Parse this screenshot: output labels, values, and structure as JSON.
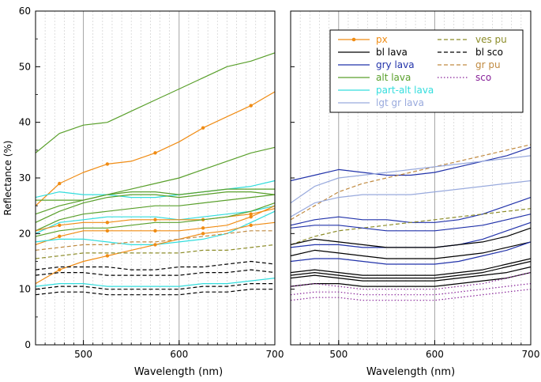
{
  "chart_data": [
    {
      "type": "line",
      "panel": "left",
      "xlabel": "Wavelength (nm)",
      "ylabel": "Reflectance (%)",
      "xlim": [
        450,
        700
      ],
      "ylim": [
        0,
        60
      ],
      "xticks": [
        500,
        600,
        700
      ],
      "yticks": [
        0,
        10,
        20,
        30,
        40,
        50,
        60
      ],
      "minor_grid_step": 10,
      "x": [
        450,
        475,
        500,
        525,
        550,
        575,
        600,
        625,
        650,
        675,
        700
      ],
      "series": [
        {
          "name": "alt lava",
          "color": "#5aa02c",
          "style": "solid",
          "values": [
            34.5,
            38,
            39.5,
            40,
            42,
            44,
            46,
            48,
            50,
            51,
            52.5
          ]
        },
        {
          "name": "px",
          "color": "#f08c14",
          "style": "solid",
          "marker": true,
          "values": [
            25,
            29,
            31,
            32.5,
            33,
            34.5,
            36.5,
            39,
            41,
            43,
            45.5
          ]
        },
        {
          "name": "alt lava",
          "color": "#5aa02c",
          "style": "solid",
          "values": [
            26,
            26,
            26,
            27,
            28,
            29,
            30,
            31.5,
            33,
            34.5,
            35.5
          ]
        },
        {
          "name": "part-alt lava",
          "color": "#33dddd",
          "style": "solid",
          "values": [
            26.5,
            27.5,
            27,
            27,
            26.5,
            26.5,
            27,
            27.5,
            28,
            28.5,
            29.5
          ]
        },
        {
          "name": "alt lava",
          "color": "#5aa02c",
          "style": "solid",
          "values": [
            23.5,
            25,
            26,
            27,
            27.5,
            27.5,
            27,
            27.5,
            28,
            28,
            28
          ]
        },
        {
          "name": "alt lava",
          "color": "#5aa02c",
          "style": "solid",
          "values": [
            22,
            24,
            25.5,
            26.5,
            27,
            27,
            26.5,
            27,
            27.5,
            27.5,
            27
          ]
        },
        {
          "name": "alt lava",
          "color": "#5aa02c",
          "style": "solid",
          "values": [
            20.5,
            22.5,
            23.5,
            24,
            24.5,
            25,
            25,
            25.5,
            26,
            26.5,
            27
          ]
        },
        {
          "name": "part-alt lava",
          "color": "#33dddd",
          "style": "solid",
          "values": [
            20,
            22,
            22.5,
            23,
            23,
            23,
            22.5,
            23,
            23.5,
            24,
            25
          ]
        },
        {
          "name": "px",
          "color": "#f08c14",
          "style": "solid",
          "marker": true,
          "values": [
            20.5,
            21.5,
            22,
            22,
            22.5,
            22.5,
            22.5,
            22.5,
            23,
            23.5,
            24.5
          ]
        },
        {
          "name": "alt lava",
          "color": "#5aa02c",
          "style": "solid",
          "values": [
            19.5,
            20.5,
            21,
            21,
            21.5,
            22,
            22,
            22.5,
            23,
            24,
            25.5
          ]
        },
        {
          "name": "px",
          "color": "#f08c14",
          "style": "solid",
          "marker": true,
          "values": [
            18,
            19.5,
            20.5,
            20.5,
            20.5,
            20.5,
            20.5,
            21,
            21.5,
            23,
            25
          ]
        },
        {
          "name": "part-alt lava",
          "color": "#33dddd",
          "style": "solid",
          "values": [
            18.5,
            19,
            19,
            18.5,
            18,
            18,
            18.5,
            19,
            20,
            22,
            24
          ]
        },
        {
          "name": "px",
          "color": "#f08c14",
          "style": "solid",
          "marker": true,
          "values": [
            11,
            13.5,
            15,
            16,
            17,
            18,
            19,
            20,
            20.5,
            21.5,
            22
          ]
        },
        {
          "name": "gr pu",
          "color": "#c08a40",
          "style": "dash",
          "values": [
            17,
            17.5,
            18,
            18,
            18.5,
            18.5,
            19,
            19.5,
            20,
            20.5,
            20.5
          ]
        },
        {
          "name": "ves pu",
          "color": "#8c8c28",
          "style": "dash",
          "values": [
            15.5,
            16,
            16.5,
            16.5,
            16.5,
            16.5,
            16.5,
            17,
            17,
            17.5,
            18
          ]
        },
        {
          "name": "bl sco",
          "color": "#000000",
          "style": "dash",
          "values": [
            13.5,
            14,
            14,
            14,
            13.5,
            13.5,
            14,
            14,
            14.5,
            15,
            14.5
          ]
        },
        {
          "name": "bl sco",
          "color": "#000000",
          "style": "dash",
          "values": [
            12.5,
            13,
            13,
            12.5,
            12.5,
            12.5,
            12.5,
            13,
            13,
            13.5,
            13
          ]
        },
        {
          "name": "part-alt lava",
          "color": "#33dddd",
          "style": "solid",
          "values": [
            10.5,
            11,
            11,
            10.5,
            10.5,
            10.5,
            10.5,
            11,
            11,
            11.5,
            12
          ]
        },
        {
          "name": "bl sco",
          "color": "#000000",
          "style": "dash",
          "values": [
            10,
            10.5,
            10.5,
            10,
            10,
            10,
            10,
            10.5,
            10.5,
            11,
            11
          ]
        },
        {
          "name": "bl sco",
          "color": "#000000",
          "style": "dash",
          "values": [
            9,
            9.5,
            9.5,
            9,
            9,
            9,
            9,
            9.5,
            9.5,
            10,
            10
          ]
        }
      ]
    },
    {
      "type": "line",
      "panel": "right",
      "xlabel": "Wavelength (nm)",
      "xlim": [
        450,
        700
      ],
      "ylim": [
        0,
        60
      ],
      "xticks": [
        500,
        600,
        700
      ],
      "minor_grid_step": 10,
      "x": [
        450,
        475,
        500,
        525,
        550,
        575,
        600,
        625,
        650,
        675,
        700
      ],
      "series": [
        {
          "name": "gry lava",
          "color": "#2233aa",
          "style": "solid",
          "values": [
            29.5,
            30.5,
            31.5,
            31,
            30.5,
            30.5,
            31,
            32,
            33,
            34,
            35.5
          ]
        },
        {
          "name": "gr pu",
          "color": "#c08a40",
          "style": "dash",
          "values": [
            22.5,
            25,
            27.5,
            29,
            30,
            31,
            32,
            33,
            34,
            35,
            36
          ]
        },
        {
          "name": "lgt gr lava",
          "color": "#99aadd",
          "style": "solid",
          "values": [
            25.5,
            28.5,
            30,
            30.5,
            31,
            31.5,
            32,
            32.5,
            33,
            33.5,
            34
          ]
        },
        {
          "name": "lgt gr lava",
          "color": "#99aadd",
          "style": "solid",
          "values": [
            23,
            25.5,
            26.5,
            27,
            27,
            27,
            27.5,
            28,
            28.5,
            29,
            29.5
          ]
        },
        {
          "name": "gry lava",
          "color": "#2233aa",
          "style": "solid",
          "values": [
            21.5,
            22.5,
            23,
            22.5,
            22.5,
            22,
            22,
            22.5,
            23.5,
            25,
            26.5
          ]
        },
        {
          "name": "ves pu",
          "color": "#8c8c28",
          "style": "dash",
          "values": [
            18,
            19.5,
            20.5,
            21,
            21.5,
            22,
            22.5,
            23,
            23.5,
            24,
            24.5
          ]
        },
        {
          "name": "gry lava",
          "color": "#2233aa",
          "style": "solid",
          "values": [
            21,
            21.5,
            21.5,
            21,
            20.5,
            20.5,
            20.5,
            21,
            21.5,
            22.5,
            23.5
          ]
        },
        {
          "name": "gry lava",
          "color": "#2233aa",
          "style": "solid",
          "values": [
            17.5,
            18,
            18,
            17.5,
            17.5,
            17.5,
            17.5,
            18,
            19,
            20.5,
            22
          ]
        },
        {
          "name": "bl lava",
          "color": "#000000",
          "style": "solid",
          "values": [
            18,
            19,
            18.5,
            18,
            17.5,
            17.5,
            17.5,
            18,
            18.5,
            19.5,
            21
          ]
        },
        {
          "name": "bl lava",
          "color": "#000000",
          "style": "solid",
          "values": [
            16,
            17,
            16.5,
            16,
            15.5,
            15.5,
            15.5,
            16,
            16.5,
            17.5,
            18.5
          ]
        },
        {
          "name": "gry lava",
          "color": "#2233aa",
          "style": "solid",
          "values": [
            15,
            15.5,
            15.5,
            15,
            14.5,
            14.5,
            14.5,
            15,
            16,
            17,
            18.5
          ]
        },
        {
          "name": "bl lava",
          "color": "#000000",
          "style": "solid",
          "values": [
            13,
            13.5,
            13,
            12.5,
            12.5,
            12.5,
            12.5,
            13,
            13.5,
            14.5,
            15.5
          ]
        },
        {
          "name": "bl lava",
          "color": "#000000",
          "style": "solid",
          "values": [
            12.5,
            13,
            12.5,
            12,
            12,
            12,
            12,
            12.5,
            13,
            14,
            15
          ]
        },
        {
          "name": "bl lava",
          "color": "#000000",
          "style": "solid",
          "values": [
            12,
            12.5,
            12,
            11.5,
            11.5,
            11.5,
            11.5,
            12,
            12.5,
            13,
            14
          ]
        },
        {
          "name": "bl lava",
          "color": "#000000",
          "style": "solid",
          "values": [
            10.5,
            11,
            11,
            10.5,
            10.5,
            10.5,
            10.5,
            11,
            11.5,
            12,
            13
          ]
        },
        {
          "name": "sco",
          "color": "#882299",
          "style": "dot",
          "values": [
            10.5,
            11,
            10.5,
            10,
            10,
            10,
            10,
            10.5,
            11,
            12,
            13
          ]
        },
        {
          "name": "sco",
          "color": "#882299",
          "style": "dot",
          "values": [
            9,
            9.5,
            9.5,
            9,
            9,
            9,
            9,
            9.5,
            10,
            10.5,
            11
          ]
        },
        {
          "name": "sco",
          "color": "#882299",
          "style": "dot",
          "values": [
            8,
            8.5,
            8.5,
            8,
            8,
            8,
            8,
            8.5,
            9,
            9.5,
            10
          ]
        }
      ]
    }
  ],
  "legend": {
    "placement": "top-right",
    "entries": [
      {
        "label": "px",
        "color": "#f08c14",
        "style": "solid",
        "marker": true
      },
      {
        "label": "bl lava",
        "color": "#000000",
        "style": "solid",
        "text_color": "#000000"
      },
      {
        "label": "gry lava",
        "color": "#2233aa",
        "style": "solid"
      },
      {
        "label": "alt lava",
        "color": "#5aa02c",
        "style": "solid"
      },
      {
        "label": "part-alt lava",
        "color": "#33dddd",
        "style": "solid"
      },
      {
        "label": "lgt gr lava",
        "color": "#99aadd",
        "style": "solid"
      },
      {
        "label": "ves pu",
        "color": "#8c8c28",
        "style": "dash"
      },
      {
        "label": "bl sco",
        "color": "#000000",
        "style": "dash"
      },
      {
        "label": "gr pu",
        "color": "#c08a40",
        "style": "dash"
      },
      {
        "label": "sco",
        "color": "#882299",
        "style": "dot"
      }
    ]
  }
}
